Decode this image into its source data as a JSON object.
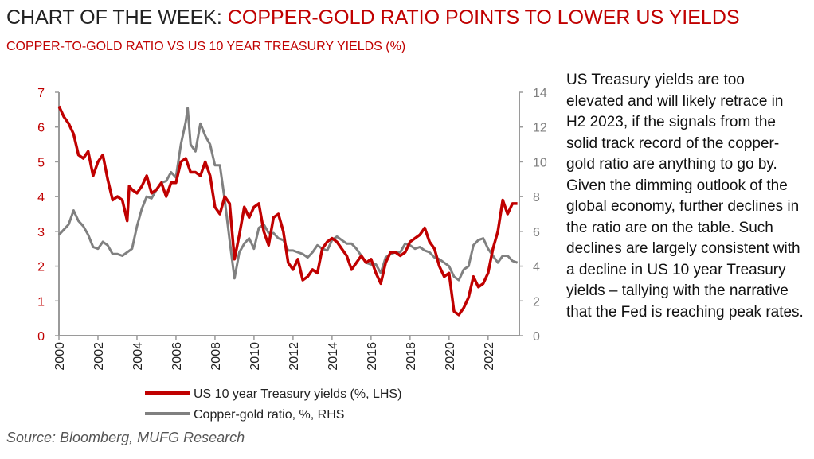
{
  "header": {
    "title_prefix": "CHART OF THE WEEK: ",
    "title_accent": "COPPER-GOLD RATIO POINTS TO LOWER US YIELDS",
    "subtitle": "COPPER-TO-GOLD RATIO VS US 10 YEAR TREASURY YIELDS (%)"
  },
  "commentary": "US Treasury yields are too elevated and will likely retrace in H2 2023, if the signals from the solid track record of the copper-gold ratio are anything to go by. Given the dimming outlook of the global economy, further declines in the ratio are on the table. Such declines are largely consistent with a decline in US 10 year Treasury yields – tallying with the narrative that the Fed is reaching peak rates.",
  "source": "Source: Bloomberg, MUFG Research",
  "colors": {
    "yields": "#c00000",
    "ratio": "#808080",
    "left_axis": "#c00000",
    "right_axis": "#808080"
  },
  "chart_data": {
    "type": "line",
    "xlim": [
      2000,
      2023.6
    ],
    "ylim_left": [
      0,
      7
    ],
    "ylim_right": [
      0,
      14
    ],
    "x_ticks": [
      "2000",
      "2002",
      "2004",
      "2006",
      "2008",
      "2010",
      "2012",
      "2014",
      "2016",
      "2018",
      "2020",
      "2022"
    ],
    "y_ticks_left": [
      "0",
      "1",
      "2",
      "3",
      "4",
      "5",
      "6",
      "7"
    ],
    "y_ticks_right": [
      "0",
      "2",
      "4",
      "6",
      "8",
      "10",
      "12",
      "14"
    ],
    "grid": false,
    "legend_position": "bottom",
    "series": [
      {
        "name": "US 10 year Treasury yields (%, LHS)",
        "axis": "left",
        "x": [
          2000.0,
          2000.25,
          2000.5,
          2000.75,
          2001.0,
          2001.25,
          2001.5,
          2001.75,
          2002.0,
          2002.25,
          2002.5,
          2002.75,
          2003.0,
          2003.25,
          2003.5,
          2003.6,
          2003.75,
          2004.0,
          2004.25,
          2004.5,
          2004.75,
          2005.0,
          2005.25,
          2005.5,
          2005.75,
          2006.0,
          2006.25,
          2006.5,
          2006.75,
          2007.0,
          2007.25,
          2007.5,
          2007.75,
          2008.0,
          2008.25,
          2008.5,
          2008.75,
          2009.0,
          2009.25,
          2009.5,
          2009.75,
          2010.0,
          2010.25,
          2010.5,
          2010.75,
          2011.0,
          2011.25,
          2011.5,
          2011.75,
          2012.0,
          2012.25,
          2012.5,
          2012.75,
          2013.0,
          2013.25,
          2013.5,
          2013.75,
          2014.0,
          2014.25,
          2014.5,
          2014.75,
          2015.0,
          2015.25,
          2015.5,
          2015.75,
          2016.0,
          2016.25,
          2016.5,
          2016.75,
          2017.0,
          2017.25,
          2017.5,
          2017.75,
          2018.0,
          2018.25,
          2018.5,
          2018.75,
          2019.0,
          2019.25,
          2019.5,
          2019.75,
          2020.0,
          2020.25,
          2020.5,
          2020.75,
          2021.0,
          2021.25,
          2021.5,
          2021.75,
          2022.0,
          2022.25,
          2022.5,
          2022.75,
          2023.0,
          2023.25,
          2023.5
        ],
        "values": [
          6.6,
          6.3,
          6.1,
          5.8,
          5.2,
          5.1,
          5.3,
          4.6,
          5.0,
          5.2,
          4.5,
          3.9,
          4.0,
          3.9,
          3.3,
          4.3,
          4.2,
          4.1,
          4.3,
          4.6,
          4.1,
          4.2,
          4.4,
          4.0,
          4.4,
          4.4,
          5.0,
          5.1,
          4.7,
          4.7,
          4.6,
          5.0,
          4.6,
          3.7,
          3.5,
          4.0,
          3.8,
          2.2,
          2.9,
          3.7,
          3.4,
          3.7,
          3.8,
          3.0,
          2.6,
          3.4,
          3.5,
          3.0,
          2.1,
          1.9,
          2.2,
          1.6,
          1.7,
          1.9,
          1.8,
          2.5,
          2.7,
          2.8,
          2.7,
          2.5,
          2.3,
          1.9,
          2.1,
          2.3,
          2.1,
          2.2,
          1.8,
          1.5,
          2.1,
          2.4,
          2.4,
          2.3,
          2.4,
          2.7,
          2.8,
          2.9,
          3.1,
          2.7,
          2.5,
          2.0,
          1.7,
          1.8,
          0.7,
          0.6,
          0.8,
          1.1,
          1.7,
          1.4,
          1.5,
          1.8,
          2.5,
          3.0,
          3.9,
          3.5,
          3.8,
          3.8
        ]
      },
      {
        "name": "Copper-gold ratio, %, RHS",
        "axis": "right",
        "x": [
          2000.0,
          2000.25,
          2000.5,
          2000.75,
          2001.0,
          2001.25,
          2001.5,
          2001.75,
          2002.0,
          2002.25,
          2002.5,
          2002.75,
          2003.0,
          2003.25,
          2003.5,
          2003.75,
          2004.0,
          2004.25,
          2004.5,
          2004.75,
          2005.0,
          2005.25,
          2005.5,
          2005.75,
          2006.0,
          2006.25,
          2006.5,
          2006.6,
          2006.75,
          2007.0,
          2007.25,
          2007.5,
          2007.75,
          2008.0,
          2008.25,
          2008.5,
          2008.75,
          2009.0,
          2009.25,
          2009.5,
          2009.75,
          2010.0,
          2010.25,
          2010.5,
          2010.75,
          2011.0,
          2011.25,
          2011.5,
          2011.75,
          2012.0,
          2012.25,
          2012.5,
          2012.75,
          2013.0,
          2013.25,
          2013.5,
          2013.75,
          2014.0,
          2014.25,
          2014.5,
          2014.75,
          2015.0,
          2015.25,
          2015.5,
          2015.75,
          2016.0,
          2016.25,
          2016.5,
          2016.75,
          2017.0,
          2017.25,
          2017.5,
          2017.75,
          2018.0,
          2018.25,
          2018.5,
          2018.75,
          2019.0,
          2019.25,
          2019.5,
          2019.75,
          2020.0,
          2020.25,
          2020.5,
          2020.75,
          2021.0,
          2021.25,
          2021.5,
          2021.75,
          2022.0,
          2022.25,
          2022.5,
          2022.75,
          2023.0,
          2023.25,
          2023.5
        ],
        "values": [
          5.8,
          6.1,
          6.4,
          7.2,
          6.6,
          6.3,
          5.8,
          5.1,
          5.0,
          5.4,
          5.2,
          4.7,
          4.7,
          4.6,
          4.8,
          5.0,
          6.3,
          7.3,
          8.0,
          7.9,
          8.4,
          8.8,
          8.9,
          9.4,
          9.1,
          11.0,
          12.3,
          13.1,
          11.0,
          10.6,
          12.2,
          11.5,
          11.0,
          9.8,
          9.8,
          7.8,
          5.5,
          3.3,
          4.8,
          5.3,
          5.6,
          5.0,
          6.2,
          6.4,
          5.9,
          5.9,
          5.6,
          5.5,
          4.9,
          4.9,
          4.8,
          4.7,
          4.5,
          4.8,
          5.2,
          5.0,
          4.9,
          5.5,
          5.7,
          5.5,
          5.3,
          5.3,
          5.0,
          4.6,
          4.2,
          4.1,
          4.1,
          3.6,
          4.5,
          4.7,
          4.8,
          4.8,
          5.3,
          5.2,
          5.0,
          5.1,
          4.9,
          4.8,
          4.5,
          4.4,
          4.2,
          4.0,
          3.4,
          3.2,
          3.8,
          4.0,
          5.2,
          5.5,
          5.6,
          5.0,
          4.6,
          4.2,
          4.6,
          4.6,
          4.3,
          4.2
        ]
      }
    ]
  }
}
